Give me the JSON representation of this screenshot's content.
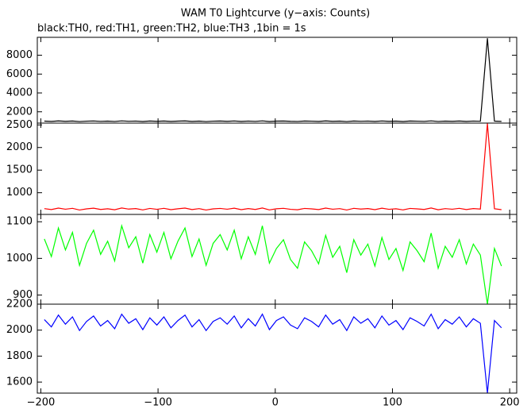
{
  "chart_data": [
    {
      "type": "line",
      "title": "WAM T0 Lightcurve (y−axis: Counts)",
      "subtitle": "black:TH0, red:TH1, green:TH2, blue:TH3 ,1bin = 1s",
      "x": [
        -197,
        -191,
        -185,
        -179,
        -173,
        -167,
        -161,
        -155,
        -149,
        -143,
        -137,
        -131,
        -125,
        -119,
        -113,
        -107,
        -101,
        -95,
        -89,
        -83,
        -77,
        -71,
        -65,
        -59,
        -53,
        -47,
        -41,
        -35,
        -29,
        -23,
        -17,
        -11,
        -5,
        1,
        7,
        13,
        19,
        25,
        31,
        37,
        43,
        49,
        55,
        61,
        67,
        73,
        79,
        85,
        91,
        97,
        103,
        109,
        115,
        121,
        127,
        133,
        139,
        145,
        151,
        157,
        163,
        169,
        175,
        181,
        187,
        193
      ],
      "values": [
        1012,
        980,
        1032,
        992,
        1024,
        964,
        1004,
        1028,
        984,
        1008,
        972,
        1036,
        996,
        1016,
        968,
        1020,
        988,
        1024,
        976,
        1008,
        1032,
        980,
        1012,
        964,
        1004,
        1020,
        992,
        1028,
        976,
        1016,
        984,
        1036,
        968,
        1008,
        1024,
        988,
        972,
        1020,
        1004,
        980,
        1032,
        992,
        1012,
        964,
        1024,
        996,
        1016,
        976,
        1028,
        988,
        1008,
        968,
        1020,
        1004,
        984,
        1036,
        972,
        1012,
        992,
        1024,
        980,
        1016,
        996,
        9800,
        1008,
        976
      ],
      "color": "#000000",
      "xlim": [
        -203,
        206
      ],
      "ylim": [
        800,
        9900
      ],
      "yticks": [
        2000,
        4000,
        6000,
        8000
      ]
    },
    {
      "type": "line",
      "x": [
        -197,
        -191,
        -185,
        -179,
        -173,
        -167,
        -161,
        -155,
        -149,
        -143,
        -137,
        -131,
        -125,
        -119,
        -113,
        -107,
        -101,
        -95,
        -89,
        -83,
        -77,
        -71,
        -65,
        -59,
        -53,
        -47,
        -41,
        -35,
        -29,
        -23,
        -17,
        -11,
        -5,
        1,
        7,
        13,
        19,
        25,
        31,
        37,
        43,
        49,
        55,
        61,
        67,
        73,
        79,
        85,
        91,
        97,
        103,
        109,
        115,
        121,
        127,
        133,
        139,
        145,
        151,
        157,
        163,
        169,
        175,
        181,
        187,
        193
      ],
      "values": [
        648,
        628,
        660,
        635,
        655,
        618,
        643,
        658,
        630,
        645,
        623,
        663,
        638,
        650,
        620,
        653,
        633,
        655,
        625,
        645,
        660,
        628,
        648,
        618,
        643,
        653,
        635,
        658,
        625,
        650,
        630,
        663,
        620,
        645,
        655,
        633,
        623,
        653,
        643,
        628,
        660,
        635,
        648,
        618,
        655,
        638,
        650,
        625,
        658,
        633,
        645,
        620,
        653,
        643,
        630,
        663,
        623,
        648,
        635,
        655,
        628,
        650,
        638,
        2530,
        645,
        625
      ],
      "color": "#ff0000",
      "xlim": [
        -203,
        206
      ],
      "ylim": [
        520,
        2540
      ],
      "yticks": [
        1000,
        1500,
        2000,
        2500
      ]
    },
    {
      "type": "line",
      "x": [
        -197,
        -191,
        -185,
        -179,
        -173,
        -167,
        -161,
        -155,
        -149,
        -143,
        -137,
        -131,
        -125,
        -119,
        -113,
        -107,
        -101,
        -95,
        -89,
        -83,
        -77,
        -71,
        -65,
        -59,
        -53,
        -47,
        -41,
        -35,
        -29,
        -23,
        -17,
        -11,
        -5,
        1,
        7,
        13,
        19,
        25,
        31,
        37,
        43,
        49,
        55,
        61,
        67,
        73,
        79,
        85,
        91,
        97,
        103,
        109,
        115,
        121,
        127,
        133,
        139,
        145,
        151,
        157,
        163,
        169,
        175,
        181,
        187,
        193
      ],
      "values": [
        1053,
        1005,
        1083,
        1023,
        1071,
        981,
        1041,
        1077,
        1011,
        1047,
        993,
        1089,
        1029,
        1059,
        987,
        1065,
        1017,
        1071,
        999,
        1047,
        1083,
        1005,
        1053,
        981,
        1041,
        1065,
        1023,
        1077,
        999,
        1059,
        1011,
        1089,
        987,
        1027,
        1051,
        997,
        973,
        1045,
        1021,
        985,
        1063,
        1003,
        1033,
        961,
        1051,
        1009,
        1039,
        979,
        1057,
        997,
        1027,
        967,
        1045,
        1021,
        991,
        1069,
        973,
        1033,
        1003,
        1051,
        985,
        1039,
        1009,
        875,
        1027,
        979
      ],
      "color": "#00ff00",
      "xlim": [
        -203,
        206
      ],
      "ylim": [
        875,
        1120
      ],
      "yticks": [
        900,
        1000,
        1100
      ]
    },
    {
      "type": "line",
      "x": [
        -197,
        -191,
        -185,
        -179,
        -173,
        -167,
        -161,
        -155,
        -149,
        -143,
        -137,
        -131,
        -125,
        -119,
        -113,
        -107,
        -101,
        -95,
        -89,
        -83,
        -77,
        -71,
        -65,
        -59,
        -53,
        -47,
        -41,
        -35,
        -29,
        -23,
        -17,
        -11,
        -5,
        1,
        7,
        13,
        19,
        25,
        31,
        37,
        43,
        49,
        55,
        61,
        67,
        73,
        79,
        85,
        91,
        97,
        103,
        109,
        115,
        121,
        127,
        133,
        139,
        145,
        151,
        157,
        163,
        169,
        175,
        181,
        187,
        193
      ],
      "values": [
        2081,
        2025,
        2116,
        2046,
        2102,
        1997,
        2067,
        2109,
        2032,
        2074,
        2011,
        2123,
        2053,
        2088,
        2004,
        2095,
        2039,
        2102,
        2018,
        2074,
        2116,
        2025,
        2081,
        1997,
        2067,
        2095,
        2046,
        2109,
        2018,
        2088,
        2032,
        2123,
        2004,
        2074,
        2102,
        2039,
        2011,
        2095,
        2067,
        2025,
        2116,
        2046,
        2081,
        1997,
        2102,
        2053,
        2088,
        2018,
        2109,
        2039,
        2074,
        2004,
        2095,
        2067,
        2032,
        2123,
        2011,
        2081,
        2046,
        2102,
        2025,
        2088,
        2053,
        1515,
        2074,
        2018
      ],
      "color": "#0000ff",
      "xlim": [
        -203,
        206
      ],
      "ylim": [
        1515,
        2200
      ],
      "yticks": [
        1600,
        1800,
        2000,
        2200
      ],
      "xticks": [
        {
          "value": -200,
          "label": "−200"
        },
        {
          "value": -100,
          "label": "−100"
        },
        0,
        100,
        200
      ]
    }
  ]
}
